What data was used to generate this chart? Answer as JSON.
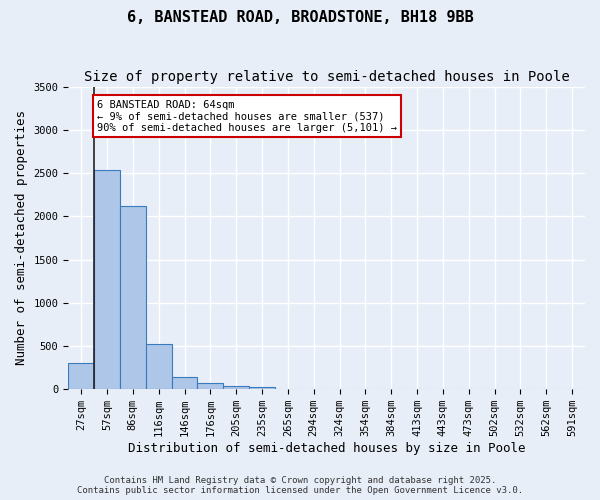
{
  "title_line1": "6, BANSTEAD ROAD, BROADSTONE, BH18 9BB",
  "title_line2": "Size of property relative to semi-detached houses in Poole",
  "xlabel": "Distribution of semi-detached houses by size in Poole",
  "ylabel": "Number of semi-detached properties",
  "bar_values": [
    300,
    2530,
    2120,
    520,
    140,
    70,
    40,
    30,
    5,
    2,
    0,
    0,
    0,
    0,
    0,
    0,
    0,
    0,
    0,
    0
  ],
  "bin_labels": [
    "27sqm",
    "57sqm",
    "86sqm",
    "116sqm",
    "146sqm",
    "176sqm",
    "205sqm",
    "235sqm",
    "265sqm",
    "294sqm",
    "324sqm",
    "354sqm",
    "384sqm",
    "413sqm",
    "443sqm",
    "473sqm",
    "502sqm",
    "532sqm",
    "562sqm",
    "591sqm"
  ],
  "bar_color": "#aec6e8",
  "bar_edge_color": "#3a7abf",
  "background_color": "#e8eef8",
  "grid_color": "#ffffff",
  "vline_x": 0.5,
  "annotation_text": "6 BANSTEAD ROAD: 64sqm\n← 9% of semi-detached houses are smaller (537)\n90% of semi-detached houses are larger (5,101) →",
  "annotation_box_color": "#ffffff",
  "annotation_box_edge_color": "#cc0000",
  "vline_color": "#222222",
  "ylim": [
    0,
    3500
  ],
  "yticks": [
    0,
    500,
    1000,
    1500,
    2000,
    2500,
    3000,
    3500
  ],
  "footer_line1": "Contains HM Land Registry data © Crown copyright and database right 2025.",
  "footer_line2": "Contains public sector information licensed under the Open Government Licence v3.0.",
  "title_fontsize": 11,
  "subtitle_fontsize": 10,
  "tick_fontsize": 7.5,
  "ylabel_fontsize": 9,
  "xlabel_fontsize": 9
}
